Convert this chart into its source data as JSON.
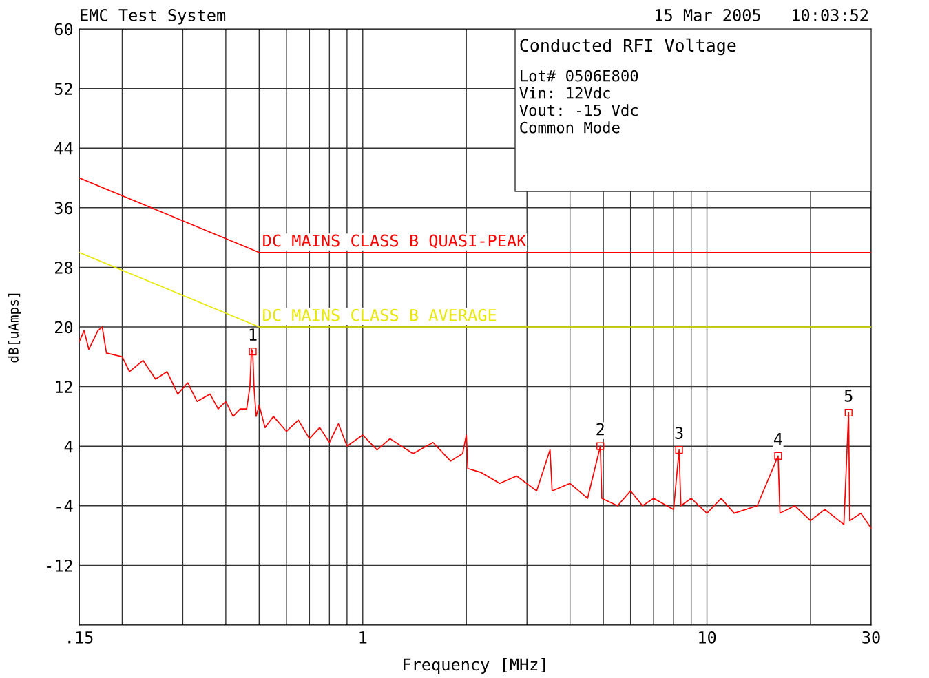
{
  "chart_data": {
    "type": "line",
    "title": "Conducted RFI Voltage",
    "xlabel": "Frequency [MHz]",
    "ylabel": "dB[uAmps]",
    "log": "x",
    "grid": true,
    "legend": false,
    "xlim": [
      0.15,
      30
    ],
    "ylim": [
      -20,
      60
    ],
    "xticks": [
      {
        "value": 0.15,
        "label": ".15"
      },
      {
        "value": 0.2,
        "label": null
      },
      {
        "value": 0.3,
        "label": null
      },
      {
        "value": 0.4,
        "label": null
      },
      {
        "value": 0.5,
        "label": null
      },
      {
        "value": 0.6,
        "label": null
      },
      {
        "value": 0.7,
        "label": null
      },
      {
        "value": 0.8,
        "label": null
      },
      {
        "value": 0.9,
        "label": null
      },
      1,
      {
        "value": 2,
        "label": null
      },
      {
        "value": 3,
        "label": null
      },
      {
        "value": 4,
        "label": null
      },
      {
        "value": 5,
        "label": null
      },
      {
        "value": 6,
        "label": null
      },
      {
        "value": 7,
        "label": null
      },
      {
        "value": 8,
        "label": null
      },
      {
        "value": 9,
        "label": null
      },
      10,
      {
        "value": 20,
        "label": null
      },
      30
    ],
    "yticks": [
      {
        "value": -20,
        "label": null
      },
      -12,
      -4,
      4,
      12,
      20,
      28,
      36,
      44,
      52,
      60
    ],
    "series": [
      {
        "name": "DC MAINS CLASS B QUASI-PEAK",
        "color": "#ff0000",
        "x": [
          0.15,
          0.5,
          30
        ],
        "values": [
          40,
          30,
          30
        ]
      },
      {
        "name": "DC MAINS CLASS B AVERAGE",
        "color": "#e8e800",
        "x": [
          0.15,
          0.5,
          30
        ],
        "values": [
          30,
          20,
          20
        ]
      },
      {
        "color": "#ff0000",
        "x": [
          0.15,
          0.155,
          0.16,
          0.17,
          0.175,
          0.18,
          0.2,
          0.21,
          0.23,
          0.25,
          0.27,
          0.29,
          0.31,
          0.33,
          0.36,
          0.38,
          0.4,
          0.42,
          0.44,
          0.46,
          0.47,
          0.475,
          0.479,
          0.483,
          0.49,
          0.5,
          0.52,
          0.55,
          0.6,
          0.65,
          0.7,
          0.75,
          0.8,
          0.85,
          0.9,
          1.0,
          1.1,
          1.2,
          1.4,
          1.6,
          1.8,
          1.95,
          2.0,
          2.02,
          2.2,
          2.5,
          2.8,
          3.2,
          3.5,
          3.55,
          4,
          4.5,
          4.9,
          4.95,
          5.5,
          6,
          6.5,
          7,
          8,
          8.3,
          8.4,
          9,
          10,
          11,
          12,
          14,
          16.1,
          16.3,
          18,
          20,
          22,
          25,
          25.8,
          26,
          28,
          30
        ],
        "values": [
          18,
          19.5,
          17,
          19.5,
          20,
          16.5,
          16,
          14,
          15.5,
          13,
          14,
          11,
          12.5,
          10,
          11,
          9,
          10,
          8,
          9,
          9,
          12,
          17,
          16.7,
          12,
          8,
          9.5,
          6.5,
          8,
          6,
          7.5,
          5,
          6.5,
          4.5,
          7,
          4,
          5.5,
          3.5,
          5,
          3,
          4.5,
          2,
          3,
          5.5,
          1,
          0.5,
          -1,
          0,
          -2,
          3.5,
          -2,
          -1,
          -3,
          4,
          -3,
          -4,
          -2,
          -4,
          -3,
          -4.5,
          3.5,
          -4,
          -3,
          -5,
          -3,
          -5,
          -4,
          2.7,
          -5,
          -4,
          -6,
          -4.5,
          -6.5,
          8.5,
          -6,
          -5,
          -7
        ]
      },
      {
        "type": "scatter",
        "marker": "square",
        "color": "#ff0000",
        "x": [
          0.479,
          4.9,
          8.3,
          16.1,
          25.8
        ],
        "values": [
          16.7,
          4.0,
          3.5,
          2.7,
          8.5
        ]
      }
    ],
    "annotations": [
      "EMC Test System",
      "15 Mar 2005   10:03:52",
      "Lot# 0506E800",
      "Vin: 12Vdc",
      "Vout: -15 Vdc",
      "Common Mode",
      {
        "text": "1",
        "x": 0.479,
        "y": 16.7
      },
      {
        "text": "2",
        "x": 4.9,
        "y": 4.0
      },
      {
        "text": "3",
        "x": 8.3,
        "y": 3.5
      },
      {
        "text": "4",
        "x": 16.1,
        "y": 2.7
      },
      {
        "text": "5",
        "x": 25.8,
        "y": 8.5
      }
    ]
  }
}
